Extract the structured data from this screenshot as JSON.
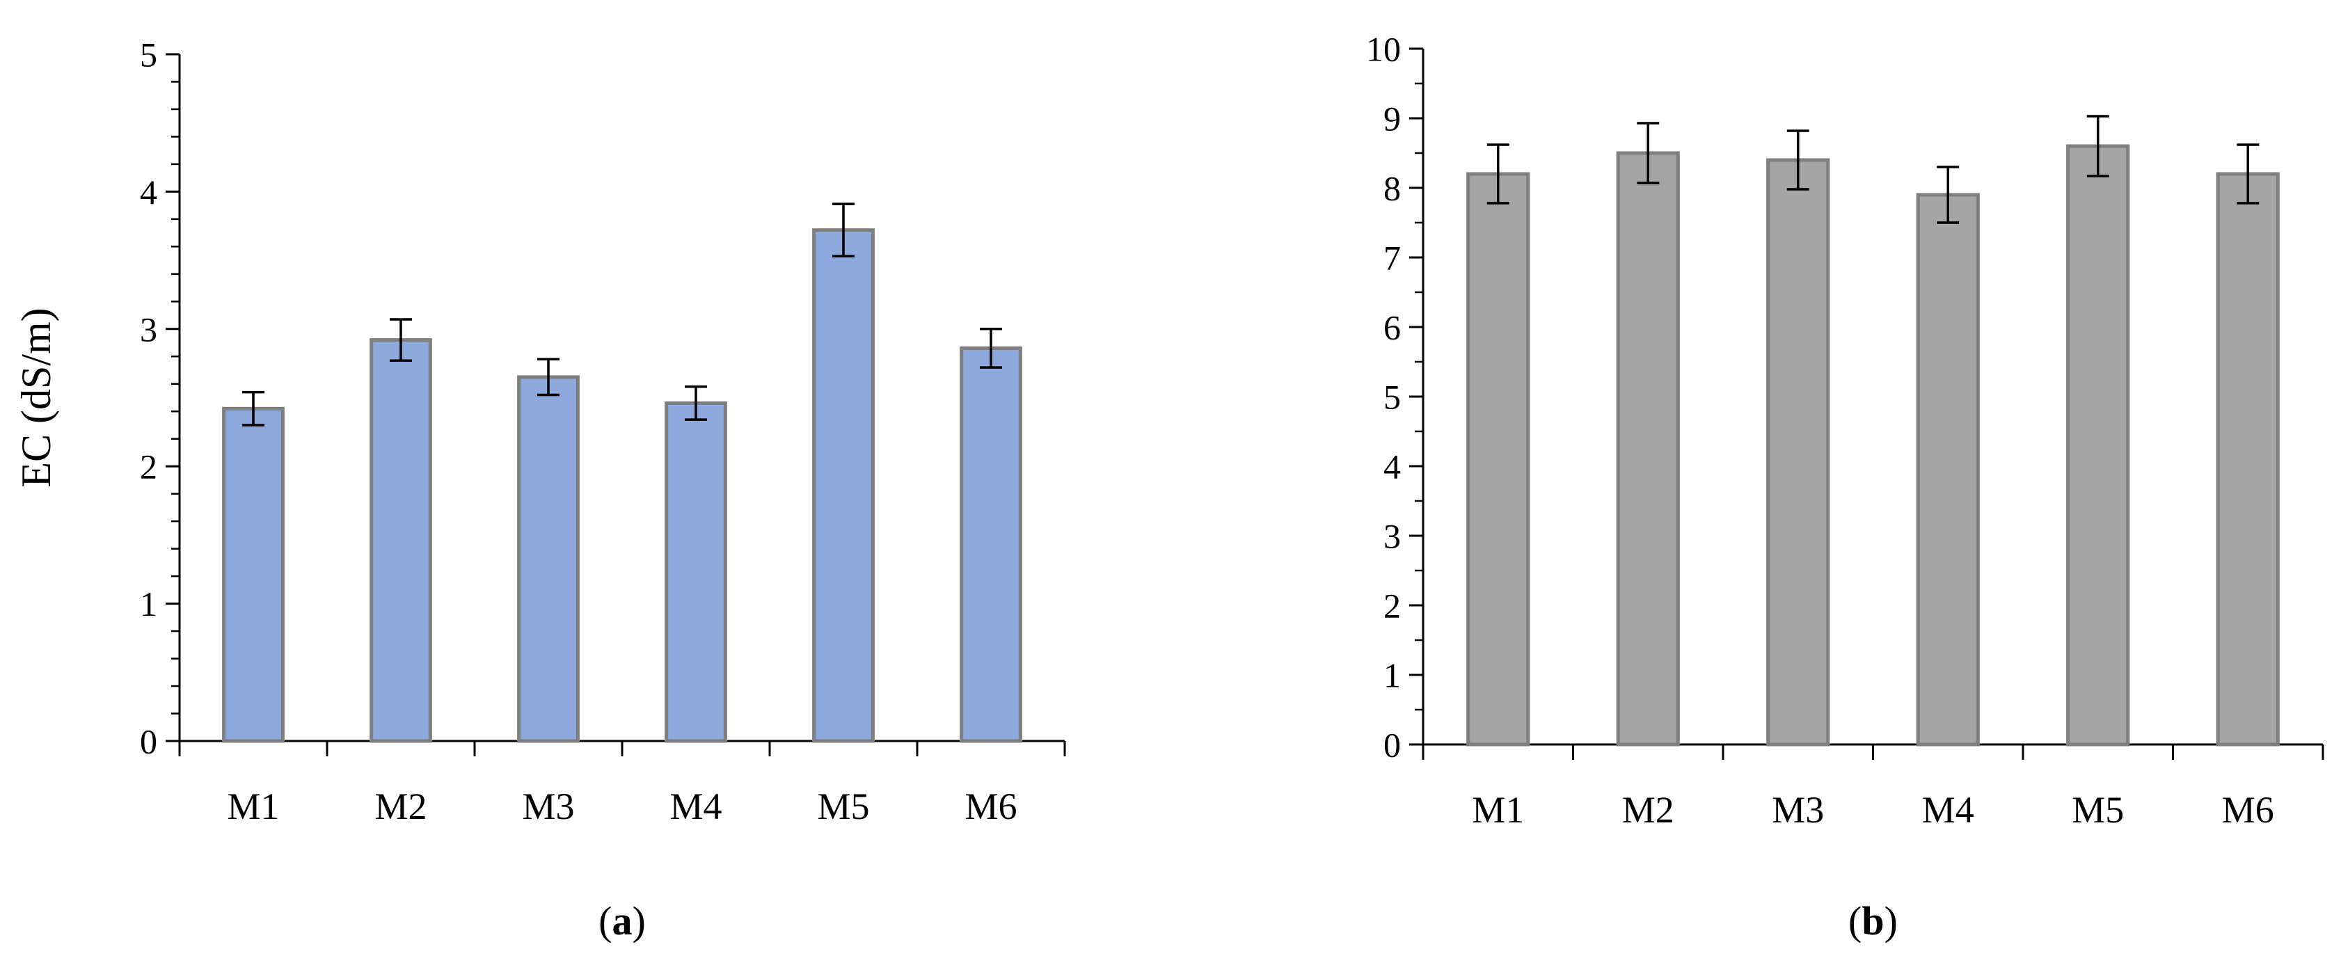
{
  "colors": {
    "panel_a_fill": "#8EA9DB",
    "panel_b_fill": "#A5A5A5",
    "bar_stroke": "#7F7F7F",
    "axis": "#000000",
    "error_bar": "#000000"
  },
  "chart_data": [
    {
      "type": "bar",
      "panel_label": "a",
      "ylabel": "EC (dS/m)",
      "xlabel": "",
      "categories": [
        "M1",
        "M2",
        "M3",
        "M4",
        "M5",
        "M6"
      ],
      "values": [
        2.42,
        2.92,
        2.65,
        2.46,
        3.72,
        2.86
      ],
      "errors": [
        0.12,
        0.15,
        0.13,
        0.12,
        0.19,
        0.14
      ],
      "ylim": [
        0,
        5
      ],
      "yticks": [
        0,
        1,
        2,
        3,
        4,
        5
      ],
      "minor_tick_step": 0.2,
      "grid": false,
      "legend": "none"
    },
    {
      "type": "bar",
      "panel_label": "b",
      "ylabel": "",
      "xlabel": "",
      "categories": [
        "M1",
        "M2",
        "M3",
        "M4",
        "M5",
        "M6"
      ],
      "values": [
        8.2,
        8.5,
        8.4,
        7.9,
        8.6,
        8.2
      ],
      "errors": [
        0.42,
        0.43,
        0.42,
        0.4,
        0.43,
        0.42
      ],
      "ylim": [
        0,
        10
      ],
      "yticks": [
        0,
        1,
        2,
        3,
        4,
        5,
        6,
        7,
        8,
        9,
        10
      ],
      "minor_tick_step": 0.5,
      "grid": false,
      "legend": "none"
    }
  ]
}
